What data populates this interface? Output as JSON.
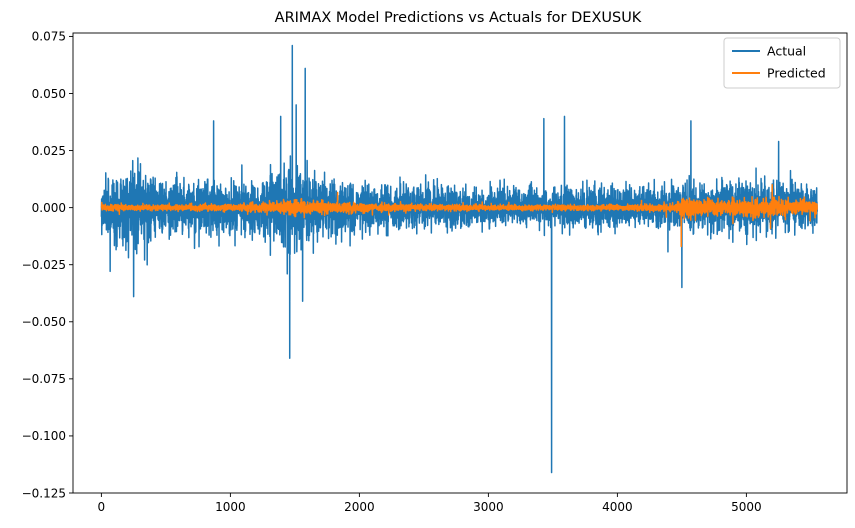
{
  "chart_data": {
    "type": "line",
    "title": "ARIMAX Model Predictions vs Actuals for DEXUSUK",
    "xlabel": "",
    "ylabel": "",
    "xlim": [
      -220,
      5780
    ],
    "ylim": [
      -0.125,
      0.0765
    ],
    "xticks": [
      0,
      1000,
      2000,
      3000,
      4000,
      5000
    ],
    "xtick_labels": [
      "0",
      "1000",
      "2000",
      "3000",
      "4000",
      "5000"
    ],
    "yticks": [
      0.075,
      0.05,
      0.025,
      0.0,
      -0.025,
      -0.05,
      -0.075,
      -0.1,
      -0.125
    ],
    "ytick_labels": [
      "0.075",
      "0.050",
      "0.025",
      "0.000",
      "−0.025",
      "−0.050",
      "−0.075",
      "−0.100",
      "−0.125"
    ],
    "grid": false,
    "legend_position": "top-right",
    "n_points": 5550,
    "series": [
      {
        "name": "Actual",
        "color": "#1f77b4",
        "amplitude_profile_x": [
          0,
          250,
          500,
          800,
          1000,
          1200,
          1400,
          1500,
          1600,
          1800,
          2000,
          2300,
          2600,
          2900,
          3200,
          3500,
          3800,
          4100,
          4400,
          4600,
          4900,
          5200,
          5550
        ],
        "amplitude_profile_value": [
          0.011,
          0.013,
          0.011,
          0.011,
          0.01,
          0.011,
          0.014,
          0.018,
          0.014,
          0.011,
          0.009,
          0.008,
          0.008,
          0.007,
          0.007,
          0.007,
          0.008,
          0.007,
          0.008,
          0.009,
          0.01,
          0.01,
          0.008
        ],
        "notable_points": [
          {
            "x": 250,
            "y": -0.039
          },
          {
            "x": 870,
            "y": 0.038
          },
          {
            "x": 1390,
            "y": 0.04
          },
          {
            "x": 1460,
            "y": -0.066
          },
          {
            "x": 1480,
            "y": 0.071
          },
          {
            "x": 1510,
            "y": 0.045
          },
          {
            "x": 1580,
            "y": 0.061
          },
          {
            "x": 1560,
            "y": -0.041
          },
          {
            "x": 3430,
            "y": 0.039
          },
          {
            "x": 3490,
            "y": -0.116
          },
          {
            "x": 3590,
            "y": 0.04
          },
          {
            "x": 4500,
            "y": -0.035
          },
          {
            "x": 4570,
            "y": 0.038
          },
          {
            "x": 5250,
            "y": 0.029
          }
        ]
      },
      {
        "name": "Predicted",
        "color": "#ff7f0e",
        "amplitude_profile_x": [
          0,
          500,
          1000,
          1400,
          1500,
          1600,
          2000,
          2500,
          3000,
          3500,
          4000,
          4450,
          4500,
          4700,
          5000,
          5200,
          5550
        ],
        "amplitude_profile_value": [
          0.0012,
          0.001,
          0.0012,
          0.002,
          0.0035,
          0.0025,
          0.0015,
          0.0012,
          0.001,
          0.001,
          0.001,
          0.0015,
          0.004,
          0.003,
          0.003,
          0.0035,
          0.0025
        ],
        "notable_points": [
          {
            "x": 4495,
            "y": -0.017
          },
          {
            "x": 5200,
            "y": 0.01
          }
        ]
      }
    ]
  }
}
